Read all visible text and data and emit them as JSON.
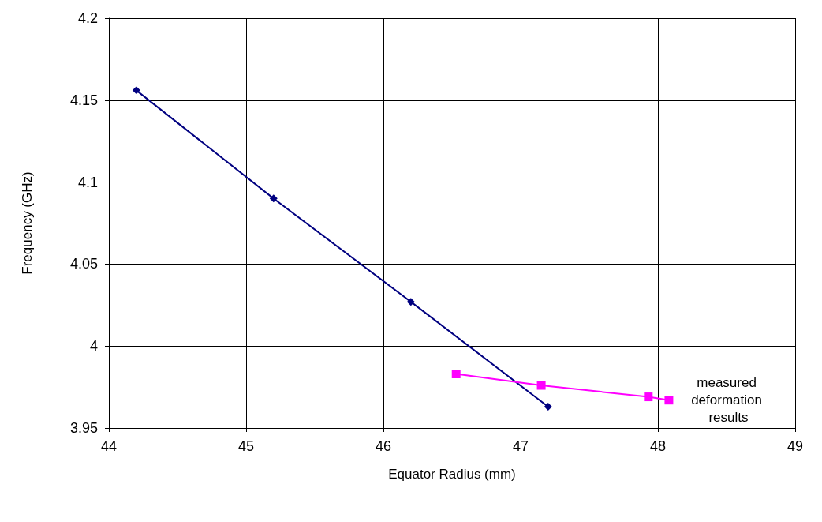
{
  "chart_data": {
    "type": "line",
    "xlabel": "Equator Radius (mm)",
    "ylabel": "Frequency (GHz)",
    "xlim": [
      44,
      49
    ],
    "xticks": [
      44,
      45,
      46,
      47,
      48,
      49
    ],
    "ylim": [
      3.95,
      4.2
    ],
    "yticks": [
      3.95,
      4,
      4.05,
      4.1,
      4.15,
      4.2
    ],
    "grid": true,
    "legend": false,
    "series": [
      {
        "color": "#000080",
        "marker": "diamond",
        "x": [
          44.2,
          45.2,
          46.2,
          47.2
        ],
        "values": [
          4.156,
          4.09,
          4.027,
          3.963
        ]
      },
      {
        "name": "measured deformation results",
        "color": "#ff00ff",
        "marker": "square",
        "x": [
          46.53,
          47.15,
          47.93,
          48.08
        ],
        "values": [
          3.983,
          3.976,
          3.969,
          3.967
        ]
      }
    ]
  }
}
